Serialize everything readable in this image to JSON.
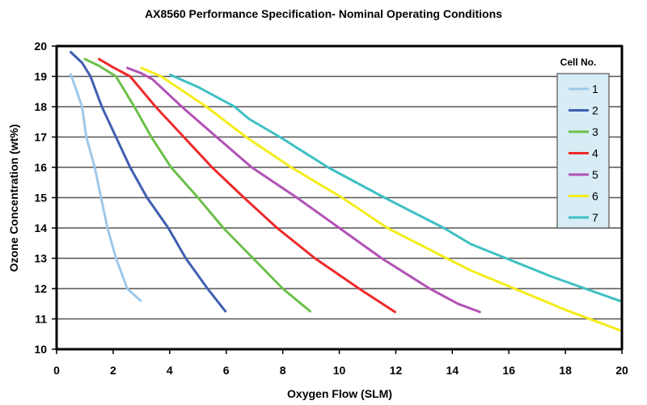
{
  "chart_data": {
    "type": "line",
    "title": "AX8560  Performance Specification-  Nominal Operating Conditions",
    "xlabel": "Oxygen Flow (SLM)",
    "ylabel": "Ozone Concentration (wt%)",
    "xlim": [
      0,
      20
    ],
    "ylim": [
      10,
      20
    ],
    "xticks": [
      "0",
      "2",
      "4",
      "6",
      "8",
      "10",
      "12",
      "14",
      "16",
      "18",
      "20"
    ],
    "yticks": [
      "10",
      "11",
      "12",
      "13",
      "14",
      "15",
      "16",
      "17",
      "18",
      "19",
      "20"
    ],
    "grid": "horizontal",
    "legend": {
      "title": "Cell No.",
      "placement": "top-right"
    },
    "series": [
      {
        "name": "1",
        "color": "#9dc8ea",
        "x": [
          0.5,
          0.9,
          1.05,
          1.35,
          1.57,
          1.8,
          2.1,
          2.5,
          2.97
        ],
        "y": [
          19.07,
          18.0,
          17.0,
          16.0,
          15.0,
          14.0,
          13.0,
          12.0,
          11.6
        ]
      },
      {
        "name": "2",
        "color": "#3f5fb0",
        "x": [
          0.5,
          0.9,
          1.2,
          1.6,
          2.1,
          2.6,
          3.2,
          3.95,
          4.57,
          5.34,
          5.97
        ],
        "y": [
          19.8,
          19.45,
          19.0,
          18.0,
          17.0,
          16.0,
          15.0,
          14.0,
          13.0,
          12.0,
          11.25
        ]
      },
      {
        "name": "3",
        "color": "#6cc04a",
        "x": [
          1.0,
          1.5,
          2.1,
          2.75,
          3.35,
          4.05,
          5.0,
          5.9,
          6.95,
          8.0,
          8.97
        ],
        "y": [
          19.57,
          19.35,
          19.0,
          18.0,
          17.0,
          16.0,
          15.0,
          14.0,
          13.0,
          12.0,
          11.25
        ]
      },
      {
        "name": "4",
        "color": "#ee2a2a",
        "x": [
          1.5,
          2.0,
          2.6,
          3.5,
          4.5,
          5.5,
          6.63,
          7.8,
          9.14,
          10.7,
          11.97
        ],
        "y": [
          19.57,
          19.3,
          19.0,
          18.0,
          17.0,
          16.0,
          15.0,
          14.0,
          13.0,
          12.0,
          11.23
        ]
      },
      {
        "name": "5",
        "color": "#b152b5",
        "x": [
          2.5,
          3.0,
          3.4,
          4.43,
          5.66,
          6.9,
          8.5,
          10.0,
          11.5,
          13.2,
          14.2,
          14.97
        ],
        "y": [
          19.28,
          19.1,
          18.9,
          18.0,
          17.0,
          16.0,
          15.0,
          14.0,
          13.0,
          12.0,
          11.5,
          11.23
        ]
      },
      {
        "name": "6",
        "color": "#f5ec1a",
        "x": [
          3.0,
          3.7,
          5.3,
          6.7,
          8.3,
          10.1,
          11.7,
          13.8,
          14.65,
          16.2,
          18.0,
          20.0
        ],
        "y": [
          19.28,
          19.0,
          18.0,
          17.0,
          16.0,
          15.0,
          14.0,
          13.0,
          12.6,
          12.0,
          11.3,
          10.6
        ]
      },
      {
        "name": "7",
        "color": "#3ec0c4",
        "x": [
          4.03,
          5.0,
          6.3,
          6.8,
          7.9,
          9.6,
          11.6,
          13.7,
          14.65,
          15.9,
          17.5,
          18.7,
          20.0
        ],
        "y": [
          19.05,
          18.65,
          18.0,
          17.6,
          17.0,
          16.0,
          15.0,
          14.0,
          13.47,
          13.0,
          12.4,
          12.0,
          11.57
        ]
      }
    ]
  }
}
